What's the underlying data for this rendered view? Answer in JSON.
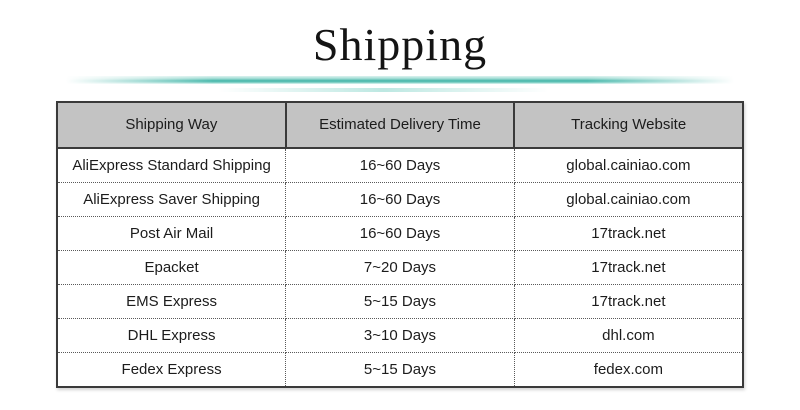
{
  "title": "Shipping",
  "accent_color": "#41b5a8",
  "header_bg_color": "#c3c3c3",
  "table": {
    "headers": [
      "Shipping Way",
      "Estimated Delivery Time",
      "Tracking Website"
    ],
    "rows": [
      [
        "AliExpress Standard Shipping",
        "16~60 Days",
        "global.cainiao.com"
      ],
      [
        "AliExpress Saver Shipping",
        "16~60 Days",
        "global.cainiao.com"
      ],
      [
        "Post Air Mail",
        "16~60 Days",
        "17track.net"
      ],
      [
        "Epacket",
        "7~20 Days",
        "17track.net"
      ],
      [
        "EMS Express",
        "5~15 Days",
        "17track.net"
      ],
      [
        "DHL Express",
        "3~10 Days",
        "dhl.com"
      ],
      [
        "Fedex Express",
        "5~15 Days",
        "fedex.com"
      ]
    ]
  }
}
